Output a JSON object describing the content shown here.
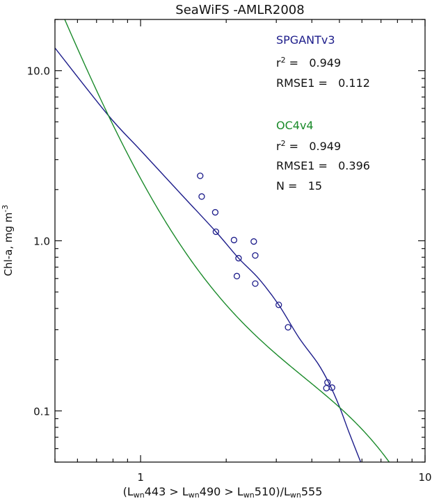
{
  "chart_data": {
    "type": "scatter",
    "title": "SeaWiFS  -AMLR2008",
    "xlabel": {
      "open": "(",
      "L": "L",
      "sub": "wn",
      "b1": "443 > ",
      "b2": "490 > ",
      "b3": "510)/",
      "b4": "555"
    },
    "ylabel": {
      "main": "Chl-a,  mg m",
      "sup": "-3"
    },
    "xscale": "log",
    "yscale": "log",
    "xlim": [
      0.5,
      10
    ],
    "ylim": [
      0.05,
      20
    ],
    "x_tick_labels": [
      {
        "value": 1,
        "label": "1"
      },
      {
        "value": 10,
        "label": "10"
      }
    ],
    "y_tick_labels": [
      {
        "value": 0.1,
        "label": "0.1"
      },
      {
        "value": 1,
        "label": "1.0"
      },
      {
        "value": 10,
        "label": "10.0"
      }
    ],
    "colors": {
      "spgant": "#1c1c8a",
      "oc4": "#1a8a2a",
      "axis": "#111111"
    },
    "points": {
      "name": "observations",
      "x": [
        1.62,
        1.64,
        1.83,
        1.84,
        2.13,
        2.5,
        2.21,
        2.53,
        2.18,
        2.53,
        3.06,
        3.3,
        4.54,
        4.5,
        4.71
      ],
      "y": [
        2.41,
        1.82,
        1.47,
        1.13,
        1.01,
        0.99,
        0.79,
        0.82,
        0.62,
        0.56,
        0.42,
        0.31,
        0.147,
        0.136,
        0.137
      ]
    },
    "series": [
      {
        "name": "SPGANTv3",
        "color_key": "spgant",
        "x": [
          0.5,
          0.767,
          1.0,
          1.4,
          1.84,
          2.21,
          2.6,
          3.06,
          3.6,
          4.2,
          4.6,
          5.0,
          5.4,
          5.94
        ],
        "y": [
          13.6,
          5.5,
          3.4,
          1.85,
          1.13,
          0.79,
          0.6,
          0.42,
          0.27,
          0.19,
          0.145,
          0.106,
          0.075,
          0.05
        ]
      },
      {
        "name": "OC4v4",
        "color_key": "oc4",
        "log10_polynomial_coefficients": [
          0.366,
          -3.067,
          1.93,
          0.649,
          -1.532
        ]
      }
    ],
    "legend": {
      "placement": "top-right",
      "blocks": [
        {
          "name": "SPGANTv3",
          "r2_label": "r",
          "r2_sup": "2",
          "r2_value": " =   0.949",
          "rmse": "RMSE1 =   0.112"
        },
        {
          "name": "OC4v4",
          "r2_label": "r",
          "r2_sup": "2",
          "r2_value": " =   0.949",
          "rmse": "RMSE1 =   0.396",
          "n": "N =   15"
        }
      ]
    }
  }
}
